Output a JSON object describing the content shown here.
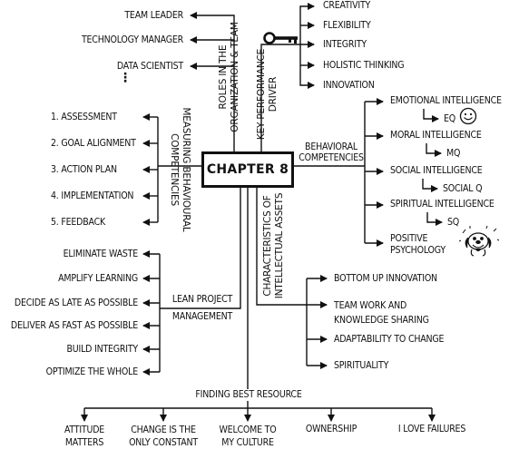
{
  "center": {
    "title": "CHAPTER 8"
  },
  "roles": {
    "heading": "ROLES IN THE\nORGANIZATION & TEAM",
    "items": [
      "TEAM LEADER",
      "TECHNOLOGY MANAGER",
      "DATA SCIENTIST"
    ],
    "continuation": "⋮"
  },
  "kpi": {
    "heading": "KEY PERFORMANCE\nDRIVER",
    "icon": "key-icon",
    "items": [
      "CREATIVITY",
      "FLEXIBILITY",
      "INTEGRITY",
      "HOLISTIC THINKING",
      "INNOVATION"
    ]
  },
  "measuring": {
    "heading": "MEASURING BEHAVIOURAL\nCOMPETENCIES",
    "items": [
      "1. ASSESSMENT",
      "2. GOAL ALIGNMENT",
      "3. ACTION PLAN",
      "4. IMPLEMENTATION",
      "5. FEEDBACK"
    ]
  },
  "behavioral": {
    "heading": "BEHAVIORAL\nCOMPETENCIES",
    "items": [
      {
        "label": "EMOTIONAL INTELLIGENCE",
        "sub": "EQ",
        "icon": "smiley-icon"
      },
      {
        "label": "MORAL INTELLIGENCE",
        "sub": "MQ"
      },
      {
        "label": "SOCIAL INTELLIGENCE",
        "sub": "SOCIAL Q"
      },
      {
        "label": "SPIRITUAL INTELLIGENCE",
        "sub": "SQ"
      },
      {
        "label": "POSITIVE\nPSYCHOLOGY",
        "icon": "happy-dog-icon"
      }
    ]
  },
  "lean": {
    "heading": "LEAN PROJECT\nMANAGEMENT",
    "items": [
      "ELIMINATE WASTE",
      "AMPLIFY LEARNING",
      "DECIDE AS LATE AS POSSIBLE",
      "DELIVER AS FAST AS POSSIBLE",
      "BUILD INTEGRITY",
      "OPTIMIZE THE WHOLE"
    ]
  },
  "assets": {
    "heading": "CHARACTERISTICS OF\nINTELLECTUAL ASSETS",
    "items": [
      "BOTTOM UP INNOVATION",
      "TEAM WORK AND\nKNOWLEDGE SHARING",
      "ADAPTABILITY TO CHANGE",
      "SPIRITUALITY"
    ]
  },
  "resource": {
    "heading": "FINDING BEST RESOURCE",
    "items": [
      "ATTITUDE\nMATTERS",
      "CHANGE IS THE\nONLY CONSTANT",
      "WELCOME TO\nMY CULTURE",
      "OWNERSHIP",
      "I LOVE FAILURES"
    ]
  }
}
